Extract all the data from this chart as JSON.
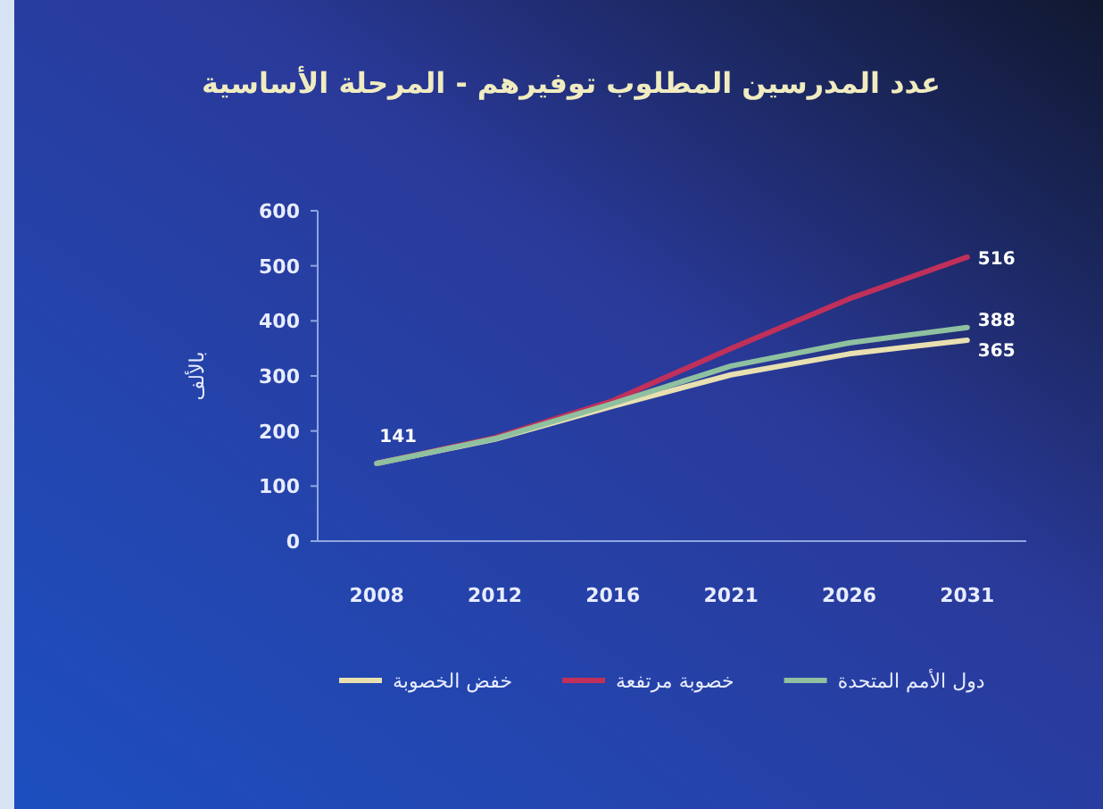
{
  "chart_data": {
    "type": "line",
    "title": "عدد المدرسين المطلوب توفيرهم - المرحلة الأساسية",
    "ylabel": "بالألف",
    "categories": [
      "2008",
      "2012",
      "2016",
      "2021",
      "2026",
      "2031"
    ],
    "series": [
      {
        "name": "خفض الخصوبة",
        "color": "#e8e0b0",
        "values": [
          141,
          185,
          245,
          302,
          340,
          365
        ],
        "value_labels": [
          "141",
          null,
          null,
          null,
          null,
          "365"
        ]
      },
      {
        "name": "خصوبة مرتفعة",
        "color": "#c0305a",
        "values": [
          141,
          188,
          255,
          350,
          440,
          516
        ],
        "value_labels": [
          null,
          null,
          null,
          null,
          null,
          "516"
        ]
      },
      {
        "name": "دول الأمم المتحدة",
        "color": "#8fc0a0",
        "values": [
          141,
          186,
          250,
          318,
          360,
          388
        ],
        "value_labels": [
          null,
          null,
          null,
          null,
          null,
          "388"
        ]
      }
    ],
    "ylim": [
      0,
      600
    ],
    "yticks": [
      0,
      100,
      200,
      300,
      400,
      500,
      600
    ],
    "legend": "bottom"
  }
}
